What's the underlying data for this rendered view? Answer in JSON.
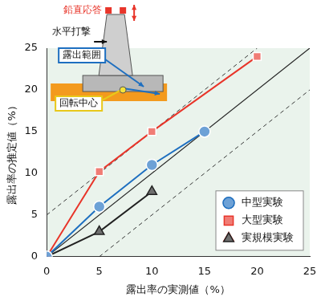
{
  "chart_data": {
    "type": "line",
    "x_label": "露出率の実測値（%）",
    "y_label": "露出率の推定値（%）",
    "xlim": [
      0,
      25
    ],
    "ylim": [
      0,
      25
    ],
    "xticks": [
      0,
      5,
      10,
      15,
      20,
      25
    ],
    "yticks": [
      0,
      5,
      10,
      15,
      20,
      25
    ],
    "grid": false,
    "legend": "lower right",
    "series": [
      {
        "name": "中型実験",
        "color": "#1e6fc0",
        "marker": "circle",
        "x": [
          0,
          5,
          10,
          15
        ],
        "values": [
          0,
          6,
          11,
          15
        ]
      },
      {
        "name": "大型実験",
        "color": "#e8352a",
        "marker": "square",
        "x": [
          0,
          5,
          10,
          20
        ],
        "values": [
          0,
          10.2,
          15,
          24
        ]
      },
      {
        "name": "実規模実験",
        "color": "#222222",
        "marker": "triangle",
        "x": [
          0,
          5,
          10
        ],
        "values": [
          0,
          3,
          7.8
        ]
      }
    ],
    "reference_lines": [
      {
        "x": [
          0,
          25
        ],
        "values": [
          0,
          25
        ],
        "color": "#222222",
        "line_style": "solid"
      },
      {
        "x": [
          0,
          20
        ],
        "values": [
          5,
          25
        ],
        "color": "#222222",
        "line_style": "dashed"
      },
      {
        "x": [
          5,
          25
        ],
        "values": [
          0,
          20
        ],
        "color": "#222222",
        "line_style": "dashed"
      }
    ],
    "annotations": [
      "鉛直応答",
      "水平打撃",
      "露出範囲",
      "回転中心"
    ]
  }
}
